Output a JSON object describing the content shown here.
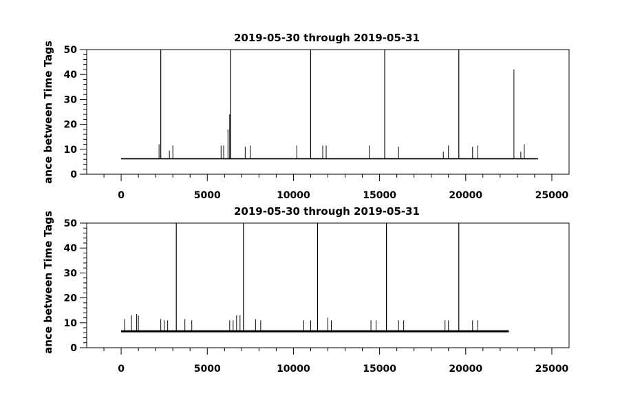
{
  "chart_data": [
    {
      "type": "line",
      "title": "2019-05-30 through 2019-05-31",
      "ylabel": "ance between Time Tags",
      "xlabel": "",
      "xlim": [
        -2000,
        26000
      ],
      "ylim": [
        0,
        50
      ],
      "xticks": [
        0,
        5000,
        10000,
        15000,
        20000,
        25000
      ],
      "yticks": [
        0,
        10,
        20,
        30,
        40,
        50
      ],
      "grid": false,
      "baseline": 6.2,
      "x_extent": [
        0,
        24200
      ],
      "series": [
        {
          "spikes": [
            {
              "x": 2200,
              "y": 12
            },
            {
              "x": 2300,
              "y": 50
            },
            {
              "x": 2800,
              "y": 9.5
            },
            {
              "x": 3000,
              "y": 11.5
            },
            {
              "x": 5800,
              "y": 11.5
            },
            {
              "x": 5950,
              "y": 11.5
            },
            {
              "x": 6200,
              "y": 18
            },
            {
              "x": 6300,
              "y": 24
            },
            {
              "x": 6350,
              "y": 50
            },
            {
              "x": 7200,
              "y": 11
            },
            {
              "x": 7500,
              "y": 11.5
            },
            {
              "x": 10200,
              "y": 11.5
            },
            {
              "x": 11000,
              "y": 50
            },
            {
              "x": 11700,
              "y": 11.5
            },
            {
              "x": 11900,
              "y": 11.5
            },
            {
              "x": 14400,
              "y": 11.5
            },
            {
              "x": 15300,
              "y": 50
            },
            {
              "x": 16100,
              "y": 11
            },
            {
              "x": 18700,
              "y": 9
            },
            {
              "x": 19000,
              "y": 11.5
            },
            {
              "x": 19600,
              "y": 50
            },
            {
              "x": 20400,
              "y": 11
            },
            {
              "x": 20700,
              "y": 11.5
            },
            {
              "x": 22800,
              "y": 42
            },
            {
              "x": 23200,
              "y": 9
            },
            {
              "x": 23400,
              "y": 12
            }
          ]
        }
      ]
    },
    {
      "type": "line",
      "title": "2019-05-30 through 2019-05-31",
      "ylabel": "ance between Time Tags",
      "xlabel": "",
      "xlim": [
        -2000,
        26000
      ],
      "ylim": [
        0,
        50
      ],
      "xticks": [
        0,
        5000,
        10000,
        15000,
        20000,
        25000
      ],
      "yticks": [
        0,
        10,
        20,
        30,
        40,
        50
      ],
      "grid": false,
      "baseline": 6.6,
      "x_extent": [
        0,
        22500
      ],
      "series": [
        {
          "spikes": [
            {
              "x": 200,
              "y": 11.5
            },
            {
              "x": 600,
              "y": 13
            },
            {
              "x": 900,
              "y": 13.5
            },
            {
              "x": 1000,
              "y": 13
            },
            {
              "x": 2300,
              "y": 11.5
            },
            {
              "x": 2500,
              "y": 11
            },
            {
              "x": 2700,
              "y": 11
            },
            {
              "x": 3200,
              "y": 50
            },
            {
              "x": 3700,
              "y": 11.5
            },
            {
              "x": 4100,
              "y": 11
            },
            {
              "x": 6300,
              "y": 11
            },
            {
              "x": 6500,
              "y": 11
            },
            {
              "x": 6700,
              "y": 13
            },
            {
              "x": 6900,
              "y": 13
            },
            {
              "x": 7100,
              "y": 50
            },
            {
              "x": 7800,
              "y": 11.5
            },
            {
              "x": 8100,
              "y": 11
            },
            {
              "x": 10600,
              "y": 11
            },
            {
              "x": 11000,
              "y": 11
            },
            {
              "x": 11400,
              "y": 50
            },
            {
              "x": 12000,
              "y": 12
            },
            {
              "x": 12200,
              "y": 11
            },
            {
              "x": 14500,
              "y": 11
            },
            {
              "x": 14800,
              "y": 11
            },
            {
              "x": 15400,
              "y": 50
            },
            {
              "x": 16100,
              "y": 11
            },
            {
              "x": 16400,
              "y": 11
            },
            {
              "x": 18800,
              "y": 11
            },
            {
              "x": 19000,
              "y": 11
            },
            {
              "x": 19600,
              "y": 50
            },
            {
              "x": 20400,
              "y": 11
            },
            {
              "x": 20700,
              "y": 11
            }
          ]
        }
      ]
    }
  ]
}
